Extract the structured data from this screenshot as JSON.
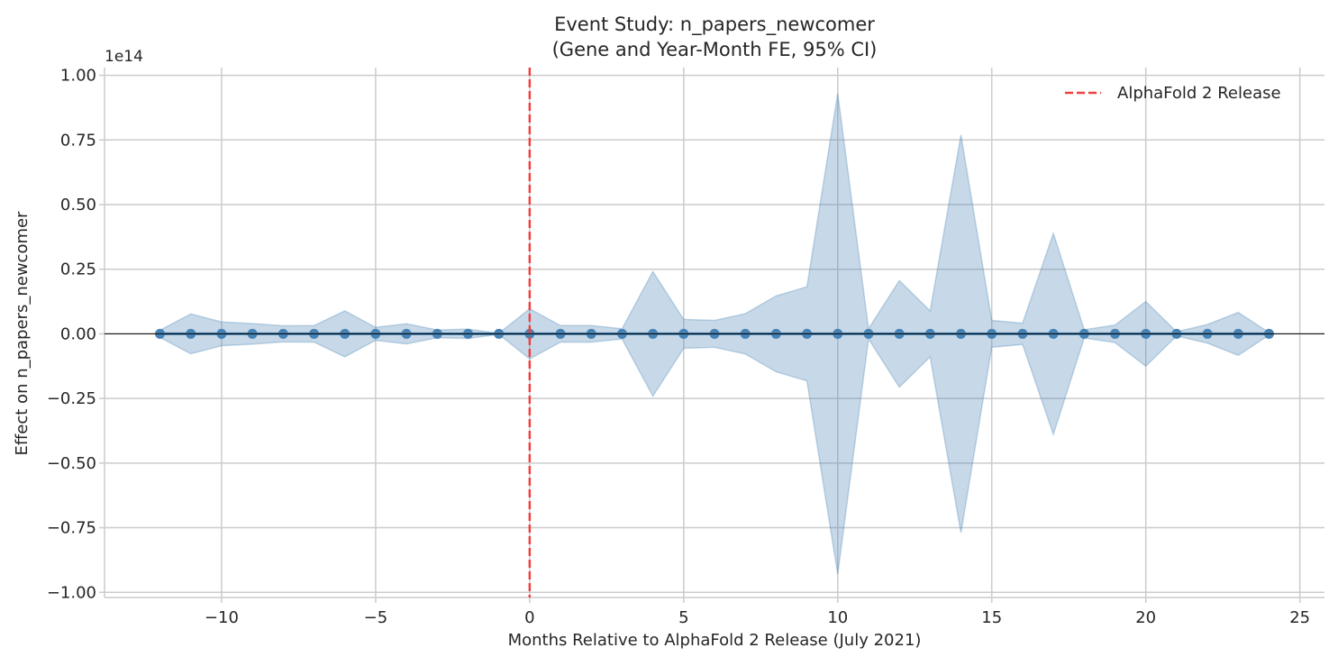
{
  "chart_data": {
    "type": "line",
    "title": "Event Study: n_papers_newcomer",
    "subtitle": "(Gene and Year-Month FE, 95% CI)",
    "xlabel": "Months Relative to AlphaFold 2 Release (July 2021)",
    "ylabel": "Effect on n_papers_newcomer",
    "y_offset_label": "1e14",
    "xlim": [
      -13.8,
      25.8
    ],
    "ylim": [
      -1.02,
      1.03
    ],
    "x_ticks": [
      -10,
      -5,
      0,
      5,
      10,
      15,
      20,
      25
    ],
    "x_tick_labels": [
      "−10",
      "−5",
      "0",
      "5",
      "10",
      "15",
      "20",
      "25"
    ],
    "y_ticks": [
      1.0,
      0.75,
      0.5,
      0.25,
      0.0,
      -0.25,
      -0.5,
      -0.75,
      -1.0
    ],
    "y_tick_labels": [
      "1.00",
      "0.75",
      "0.50",
      "0.25",
      "0.00",
      "−0.25",
      "−0.50",
      "−0.75",
      "−1.00"
    ],
    "grid": true,
    "legend_position": "top-right",
    "colors": {
      "series": "#4682b4",
      "ci_fill": "#4682b4",
      "release_line": "#f04040",
      "zero_line": "#000000"
    },
    "x": [
      -12,
      -11,
      -10,
      -9,
      -8,
      -7,
      -6,
      -5,
      -4,
      -3,
      -2,
      -1,
      0,
      1,
      2,
      3,
      4,
      5,
      6,
      7,
      8,
      9,
      10,
      11,
      12,
      13,
      14,
      15,
      16,
      17,
      18,
      19,
      20,
      21,
      22,
      23,
      24
    ],
    "estimate": [
      0,
      0,
      0,
      0,
      0,
      0,
      0,
      0,
      0,
      0,
      0,
      0,
      0,
      0,
      0,
      0,
      0,
      0,
      0,
      0,
      0,
      0,
      0,
      0,
      0,
      0,
      0,
      0,
      0,
      0,
      0,
      0,
      0,
      0,
      0,
      0,
      0
    ],
    "ci_upper": [
      0.014,
      0.077,
      0.046,
      0.04,
      0.031,
      0.032,
      0.089,
      0.025,
      0.039,
      0.015,
      0.018,
      0.002,
      0.097,
      0.032,
      0.032,
      0.02,
      0.241,
      0.056,
      0.052,
      0.078,
      0.147,
      0.182,
      0.93,
      0.02,
      0.206,
      0.089,
      0.77,
      0.052,
      0.041,
      0.389,
      0.016,
      0.034,
      0.125,
      0.008,
      0.036,
      0.083,
      0.005
    ],
    "ci_lower": [
      -0.014,
      -0.077,
      -0.046,
      -0.04,
      -0.031,
      -0.032,
      -0.089,
      -0.025,
      -0.039,
      -0.015,
      -0.018,
      -0.002,
      -0.097,
      -0.032,
      -0.032,
      -0.02,
      -0.241,
      -0.056,
      -0.052,
      -0.078,
      -0.147,
      -0.182,
      -0.93,
      -0.02,
      -0.206,
      -0.089,
      -0.77,
      -0.052,
      -0.041,
      -0.389,
      -0.016,
      -0.034,
      -0.125,
      -0.008,
      -0.036,
      -0.083,
      -0.005
    ],
    "vline": {
      "x": 0,
      "label": "AlphaFold 2 Release"
    },
    "hline": {
      "y": 0
    }
  }
}
